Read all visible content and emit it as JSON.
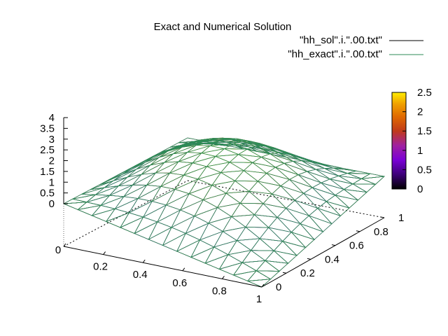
{
  "chart_data": {
    "type": "surface",
    "title": "Exact and Numerical Solution",
    "legend_position": "top-right",
    "series": [
      {
        "name": "\"hh_sol\".i.\".00.txt\"",
        "color": "#000000"
      },
      {
        "name": "\"hh_exact\".i.\".00.txt\"",
        "color": "#2e8b57"
      }
    ],
    "x_ticks": [
      "0",
      "0.2",
      "0.4",
      "0.6",
      "0.8",
      "1"
    ],
    "y_ticks": [
      "0",
      "0.2",
      "0.4",
      "0.6",
      "0.8",
      "1"
    ],
    "z_ticks": [
      "0",
      "0.5",
      "1",
      "1.5",
      "2",
      "2.5",
      "3",
      "3.5",
      "4"
    ],
    "xlim": [
      0,
      1
    ],
    "ylim": [
      0,
      1
    ],
    "zlim": [
      0,
      4
    ],
    "colorbar": {
      "range": [
        0,
        2.5
      ],
      "ticks": [
        "0",
        "0.5",
        "1",
        "1.5",
        "2",
        "2.5"
      ],
      "palette": [
        "#000000",
        "#3c0078",
        "#7a00d6",
        "#a020a0",
        "#c03a1a",
        "#e06a00",
        "#f0a000",
        "#ffee00"
      ]
    },
    "surface": {
      "function": "2.5 * sin(pi*x) * sin(pi*y)",
      "peak": 2.5,
      "grid_n": 14
    },
    "grid": false
  }
}
